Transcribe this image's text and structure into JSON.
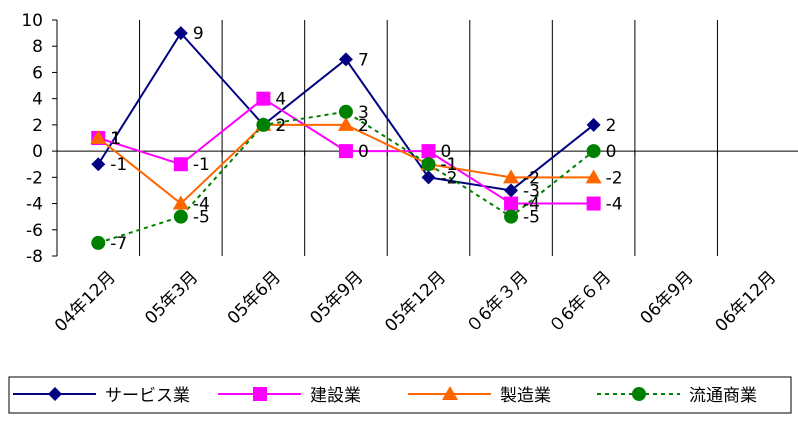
{
  "chart_data": {
    "type": "line",
    "categories": [
      "04年12月",
      "05年3月",
      "05年6月",
      "05年9月",
      "05年12月",
      "06年3月",
      "06年6月",
      "06年9月",
      "06年12月"
    ],
    "x_tick_labels": [
      "04年12月",
      "05年3月",
      "05年6月",
      "05年9月",
      "05年12月",
      "０6年３月",
      "０6年６月",
      "06年9月",
      "06年12月"
    ],
    "ylim": [
      -8,
      10
    ],
    "y_ticks": [
      10,
      8,
      6,
      4,
      2,
      0,
      -2,
      -4,
      -6,
      -8
    ],
    "y_tick_labels": [
      "10",
      "8",
      "6",
      "4",
      "2",
      "0",
      "-2",
      "-4",
      "-6",
      "-8"
    ],
    "grid": "vertical",
    "legend_position": "bottom",
    "series": [
      {
        "name": "サービス業",
        "values": [
          -1,
          9,
          2,
          7,
          -2,
          -3,
          2,
          null,
          null
        ],
        "labels": [
          "-1",
          "9",
          "2",
          "7",
          "-2",
          "-3",
          "2",
          null,
          null
        ],
        "color": "#000080",
        "marker": "diamond",
        "dash": "solid"
      },
      {
        "name": "建設業",
        "values": [
          1,
          -1,
          4,
          0,
          0,
          -4,
          -4,
          null,
          null
        ],
        "labels": [
          "1",
          "-1",
          "4",
          "0",
          "0",
          "-4",
          "-4",
          null,
          null
        ],
        "color": "#ff00ff",
        "marker": "square",
        "dash": "solid"
      },
      {
        "name": "製造業",
        "values": [
          1,
          -4,
          2,
          2,
          -1,
          -2,
          -2,
          null,
          null
        ],
        "labels": [
          "1",
          "-4",
          "2",
          "2",
          "-1",
          "-2",
          "-2",
          null,
          null
        ],
        "color": "#ff6600",
        "marker": "triangle",
        "dash": "solid"
      },
      {
        "name": "流通商業",
        "values": [
          -7,
          -5,
          2,
          3,
          -1,
          -5,
          0,
          null,
          null
        ],
        "labels": [
          "-7",
          "-5",
          "2",
          "3",
          "-1",
          "-5",
          "0",
          null,
          null
        ],
        "color": "#008000",
        "marker": "circle",
        "dash": "dotted"
      }
    ]
  }
}
